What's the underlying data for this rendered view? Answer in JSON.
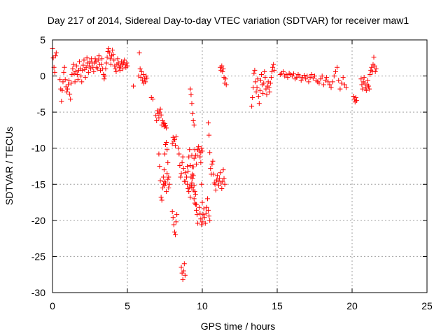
{
  "chart_data": {
    "type": "scatter",
    "title": "Day 217 of 2014, Sidereal Day-to-day VTEC variation (SDTVAR) for receiver maw1",
    "xlabel": "GPS time / hours",
    "ylabel": "SDTVAR / TECUs",
    "xlim": [
      0,
      25
    ],
    "ylim": [
      -30,
      5
    ],
    "xticks": [
      0,
      5,
      10,
      15,
      20,
      25
    ],
    "yticks": [
      5,
      0,
      -5,
      -10,
      -15,
      -20,
      -25,
      -30
    ],
    "xtick_labels": [
      "0",
      "5",
      "10",
      "15",
      "20",
      "25"
    ],
    "ytick_labels": [
      "5",
      "0",
      "-5",
      "-10",
      "-15",
      "-20",
      "-25",
      "-30"
    ],
    "grid": true,
    "marker": "plus",
    "color": "#ff0000",
    "series": [
      {
        "name": "SDTVAR",
        "x": [
          0.0,
          0.05,
          0.1,
          0.15,
          0.2,
          0.25,
          0.5,
          0.55,
          0.6,
          0.65,
          0.7,
          0.75,
          0.8,
          0.85,
          0.9,
          0.95,
          1.0,
          1.05,
          1.1,
          1.15,
          1.2,
          1.25,
          1.3,
          1.35,
          1.4,
          1.45,
          1.5,
          1.55,
          1.6,
          1.65,
          1.7,
          1.75,
          1.8,
          1.85,
          1.9,
          1.95,
          2.0,
          2.05,
          2.1,
          2.15,
          2.2,
          2.25,
          2.3,
          2.35,
          2.4,
          2.45,
          2.5,
          2.55,
          2.6,
          2.65,
          2.7,
          2.75,
          2.8,
          2.85,
          2.9,
          2.95,
          3.0,
          3.05,
          3.1,
          3.15,
          3.2,
          3.25,
          3.3,
          3.35,
          3.4,
          3.45,
          3.5,
          3.55,
          3.6,
          3.65,
          3.7,
          3.75,
          3.8,
          3.85,
          3.9,
          3.95,
          4.0,
          4.05,
          4.1,
          4.15,
          4.2,
          4.25,
          4.3,
          4.35,
          4.4,
          4.45,
          4.5,
          4.55,
          4.6,
          4.65,
          4.7,
          4.75,
          4.8,
          4.85,
          4.9,
          4.95,
          5.0,
          5.4,
          5.75,
          5.8,
          5.85,
          5.9,
          5.95,
          6.0,
          6.05,
          6.1,
          6.15,
          6.2,
          6.25,
          6.3,
          6.6,
          6.7,
          6.9,
          6.95,
          7.0,
          7.05,
          7.1,
          7.15,
          7.2,
          7.25,
          7.3,
          7.35,
          7.4,
          7.45,
          7.5,
          7.55,
          7.6,
          7.1,
          7.15,
          7.2,
          7.25,
          7.3,
          7.35,
          7.4,
          7.45,
          7.5,
          7.55,
          7.6,
          7.65,
          7.7,
          7.75,
          7.8,
          7.4,
          7.45,
          7.5,
          7.55,
          7.6,
          7.65,
          7.7,
          7.75,
          8.0,
          8.05,
          8.1,
          8.15,
          8.2,
          8.25,
          8.0,
          8.05,
          8.1,
          8.15,
          8.2,
          8.25,
          8.3,
          8.4,
          8.45,
          8.5,
          8.55,
          8.6,
          8.65,
          8.7,
          8.75,
          8.8,
          8.85,
          8.6,
          8.65,
          8.7,
          8.75,
          8.8,
          8.85,
          8.9,
          8.95,
          9.0,
          9.05,
          9.1,
          9.15,
          9.2,
          9.25,
          9.3,
          9.35,
          9.4,
          9.45,
          9.5,
          9.55,
          9.6,
          9.65,
          9.7,
          9.75,
          9.8,
          9.85,
          9.9,
          9.95,
          10.0,
          9.0,
          9.05,
          9.1,
          9.15,
          9.2,
          9.25,
          9.3,
          9.35,
          9.4,
          9.45,
          9.5,
          9.55,
          9.6,
          9.65,
          9.7,
          9.8,
          9.85,
          9.9,
          9.95,
          10.0,
          9.2,
          9.25,
          9.3,
          9.35,
          9.4,
          9.45,
          9.3,
          9.35,
          9.4,
          9.45,
          9.5,
          9.55,
          9.6,
          9.9,
          9.95,
          10.0,
          10.05,
          10.1,
          10.15,
          10.2,
          10.25,
          10.3,
          10.35,
          10.4,
          10.45,
          10.5,
          10.4,
          10.45,
          10.5,
          10.55,
          10.6,
          10.65,
          10.7,
          10.75,
          10.8,
          10.85,
          10.9,
          10.95,
          11.0,
          11.05,
          11.1,
          11.15,
          11.2,
          11.25,
          11.3,
          11.35,
          11.4,
          11.45,
          11.5,
          11.2,
          11.25,
          11.3,
          11.35,
          11.4,
          11.45,
          11.5,
          11.55,
          11.6,
          13.3,
          13.35,
          13.4,
          13.45,
          13.5,
          13.55,
          13.6,
          13.65,
          13.7,
          13.75,
          13.8,
          13.85,
          13.9,
          13.95,
          14.0,
          14.05,
          14.1,
          14.15,
          14.2,
          14.25,
          14.3,
          14.35,
          14.4,
          14.45,
          14.5,
          14.55,
          14.6,
          14.65,
          14.7,
          14.75,
          14.8,
          15.2,
          15.3,
          15.4,
          15.5,
          15.6,
          15.7,
          15.8,
          15.9,
          16.0,
          16.1,
          16.2,
          16.3,
          16.4,
          16.5,
          16.6,
          16.7,
          16.8,
          16.9,
          17.0,
          17.1,
          17.2,
          17.3,
          17.4,
          17.5,
          17.6,
          17.7,
          17.8,
          17.9,
          18.0,
          18.1,
          18.2,
          18.3,
          18.4,
          18.5,
          18.6,
          18.7,
          18.8,
          18.9,
          19.0,
          19.1,
          19.2,
          19.3,
          19.4,
          19.5,
          19.6,
          20.1,
          20.15,
          20.2,
          20.25,
          20.3,
          20.6,
          20.65,
          20.7,
          20.75,
          20.8,
          20.85,
          20.9,
          20.95,
          21.0,
          21.05,
          21.1,
          21.15,
          21.2,
          21.25,
          21.3,
          21.35,
          21.4,
          21.45,
          21.5,
          21.55,
          21.6
        ],
        "y": [
          3.8,
          2.5,
          1.2,
          0.5,
          2.8,
          3.2,
          -0.5,
          -1.8,
          -3.5,
          -2.0,
          -0.8,
          0.5,
          1.2,
          -0.5,
          -1.5,
          -2.2,
          -1.8,
          -1.2,
          -0.6,
          -2.5,
          -3.2,
          -1.0,
          0.2,
          1.0,
          1.6,
          0.4,
          -0.8,
          0.6,
          1.4,
          0.2,
          -0.5,
          0.8,
          2.0,
          1.0,
          0.0,
          -0.8,
          0.8,
          1.5,
          2.2,
          0.9,
          -0.2,
          1.2,
          2.5,
          1.8,
          0.5,
          1.4,
          2.0,
          1.0,
          2.4,
          1.8,
          1.2,
          0.6,
          1.8,
          2.4,
          2.0,
          1.2,
          1.0,
          2.2,
          2.8,
          1.6,
          0.8,
          1.6,
          2.4,
          1.0,
          0.2,
          -0.4,
          0.0,
          1.0,
          1.8,
          2.6,
          3.4,
          3.8,
          3.2,
          2.4,
          1.6,
          2.8,
          3.6,
          3.0,
          2.2,
          1.4,
          1.0,
          0.6,
          1.6,
          2.4,
          1.8,
          1.2,
          0.8,
          1.4,
          2.0,
          1.6,
          1.0,
          1.8,
          2.2,
          1.6,
          1.2,
          1.8,
          1.4,
          -1.4,
          0.0,
          3.2,
          1.0,
          -0.2,
          0.6,
          -0.6,
          0.2,
          -1.0,
          -0.4,
          -0.8,
          0.0,
          -0.3,
          -3.0,
          -3.2,
          -5.5,
          -6.2,
          -4.8,
          -5.2,
          -5.8,
          -5.0,
          -4.6,
          -5.4,
          -6.8,
          -6.2,
          -6.5,
          -7.0,
          -6.6,
          -6.9,
          -7.2,
          -10.8,
          -12.5,
          -14.5,
          -16.8,
          -17.2,
          -15.5,
          -14.0,
          -13.0,
          -10.8,
          -9.5,
          -9.2,
          -10.2,
          -12.0,
          -14.0,
          -15.0,
          -15.0,
          -14.6,
          -15.2,
          -14.8,
          -16.0,
          -13.5,
          -14.3,
          -15.5,
          -9.4,
          -8.5,
          -9.0,
          -8.8,
          -9.6,
          -8.4,
          -18.8,
          -19.6,
          -20.6,
          -21.6,
          -22.0,
          -20.2,
          -19.2,
          -10.0,
          -10.8,
          -12.4,
          -14.0,
          -13.5,
          -12.0,
          -11.2,
          -12.8,
          -14.6,
          -13.4,
          -26.5,
          -27.3,
          -28.2,
          -27.0,
          -26.0,
          -27.6,
          -14.6,
          -14.0,
          -12.5,
          -13.2,
          -11.2,
          -10.2,
          -12.4,
          -14.0,
          -15.4,
          -14.2,
          -12.6,
          -11.4,
          -10.2,
          -11.0,
          -12.2,
          -11.0,
          -10.2,
          -9.8,
          -10.4,
          -11.2,
          -10.6,
          -10.0,
          -10.4,
          -15.0,
          -15.6,
          -16.0,
          -15.4,
          -16.8,
          -15.2,
          -14.8,
          -13.6,
          -15.8,
          -17.0,
          -17.6,
          -16.4,
          -17.8,
          -19.2,
          -20.4,
          -18.2,
          -19.0,
          -19.8,
          -20.6,
          -20.2,
          -1.8,
          -2.6,
          -3.8,
          -5.2,
          -6.2,
          -6.8,
          -11.0,
          -12.6,
          -13.8,
          -15.2,
          -16.0,
          -17.8,
          -18.6,
          -12.0,
          -15.0,
          -17.5,
          -19.2,
          -18.4,
          -19.6,
          -20.4,
          -19.0,
          -18.2,
          -17.0,
          -18.6,
          -19.4,
          -20.0,
          -6.5,
          -8.2,
          -10.6,
          -12.8,
          -13.6,
          -12.2,
          -11.8,
          -13.6,
          -14.8,
          -15.0,
          -15.8,
          -14.4,
          -13.8,
          -14.6,
          -15.2,
          -14.2,
          -13.4,
          -14.8,
          -15.6,
          -14.6,
          -13.0,
          -14.2,
          -15.0,
          1.2,
          0.8,
          1.4,
          0.6,
          1.0,
          -0.2,
          -1.0,
          -0.4,
          -1.2,
          -4.2,
          -3.0,
          -1.6,
          0.4,
          0.8,
          -0.8,
          -2.2,
          -1.6,
          -0.4,
          -2.8,
          -3.8,
          -2.0,
          -0.6,
          0.2,
          -1.2,
          -2.4,
          -1.0,
          0.6,
          -0.2,
          -1.8,
          -2.6,
          -1.4,
          -0.8,
          -1.6,
          -2.2,
          -1.0,
          -0.2,
          0.6,
          1.2,
          1.6,
          0.8,
          0.2,
          0.4,
          0.6,
          0.0,
          0.2,
          -0.2,
          0.4,
          0.2,
          0.0,
          0.3,
          -0.4,
          -0.2,
          0.2,
          0.0,
          -0.6,
          -0.2,
          0.1,
          -0.4,
          0.0,
          -0.8,
          -0.2,
          0.2,
          -0.3,
          0.0,
          -0.6,
          -0.8,
          -1.0,
          -0.4,
          0.0,
          -1.2,
          -0.6,
          -0.2,
          -0.8,
          -1.2,
          -1.6,
          -0.8,
          0.0,
          0.6,
          1.2,
          -0.6,
          -1.8,
          -1.0,
          -0.2,
          -1.2,
          -1.6,
          -2.8,
          -3.2,
          -3.6,
          -3.0,
          -3.4,
          -0.4,
          -1.2,
          -1.8,
          -0.8,
          -0.2,
          -1.0,
          -1.6,
          -2.0,
          -1.2,
          -0.6,
          -1.4,
          -1.8,
          0.2,
          0.8,
          1.2,
          0.6,
          1.6,
          2.6,
          1.4,
          0.6,
          1.0
        ]
      }
    ]
  }
}
